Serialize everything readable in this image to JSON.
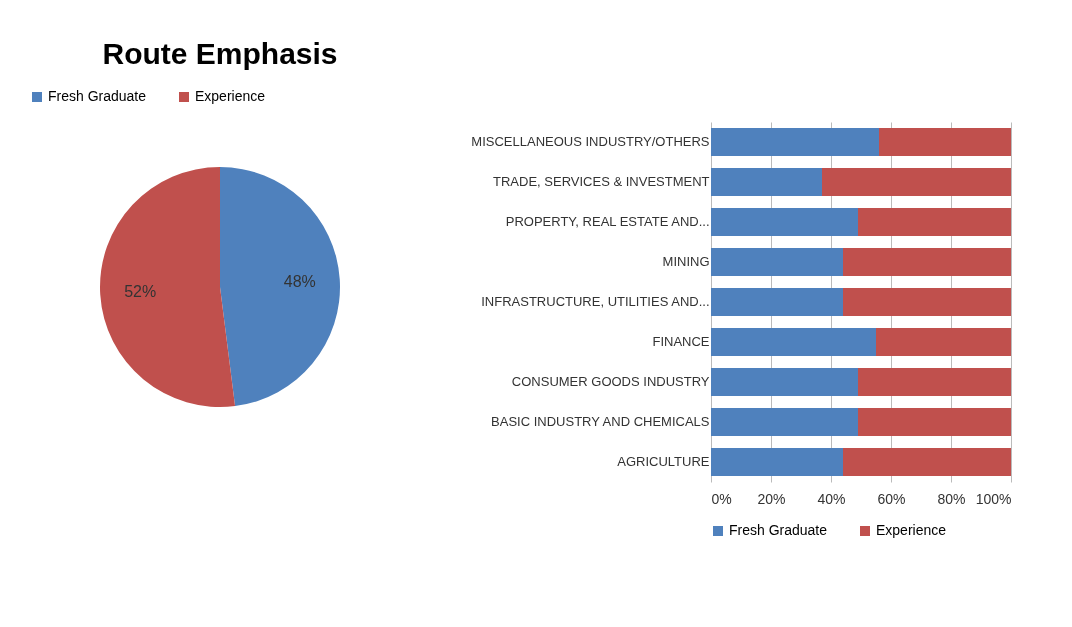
{
  "chart_data": [
    {
      "type": "pie",
      "title": "Route Emphasis",
      "categories": [
        "Fresh Graduate",
        "Experience"
      ],
      "values": [
        48,
        52
      ],
      "colors": [
        "#4f81bd",
        "#c0504d"
      ],
      "value_labels": [
        "48%",
        "52%"
      ],
      "legend": "top"
    },
    {
      "type": "bar",
      "orientation": "horizontal",
      "stacked": true,
      "categories": [
        "MISCELLANEOUS INDUSTRY/OTHERS",
        "TRADE, SERVICES & INVESTMENT",
        "PROPERTY, REAL ESTATE AND...",
        "MINING",
        "INFRASTRUCTURE, UTILITIES AND...",
        "FINANCE",
        "CONSUMER GOODS INDUSTRY",
        "BASIC INDUSTRY AND CHEMICALS",
        "AGRICULTURE"
      ],
      "series": [
        {
          "name": "Fresh Graduate",
          "color": "#4f81bd",
          "values": [
            56,
            37,
            49,
            44,
            44,
            55,
            49,
            49,
            44
          ]
        },
        {
          "name": "Experience",
          "color": "#c0504d",
          "values": [
            44,
            63,
            51,
            56,
            56,
            45,
            51,
            51,
            56
          ]
        }
      ],
      "xlim": [
        0,
        100
      ],
      "xticks": [
        {
          "value": 0,
          "label": "0%"
        },
        {
          "value": 20,
          "label": "20%"
        },
        {
          "value": 40,
          "label": "40%"
        },
        {
          "value": 60,
          "label": "60%"
        },
        {
          "value": 80,
          "label": "80%"
        },
        {
          "value": 100,
          "label": "100%"
        }
      ],
      "grid": "x",
      "legend": "bottom"
    }
  ]
}
